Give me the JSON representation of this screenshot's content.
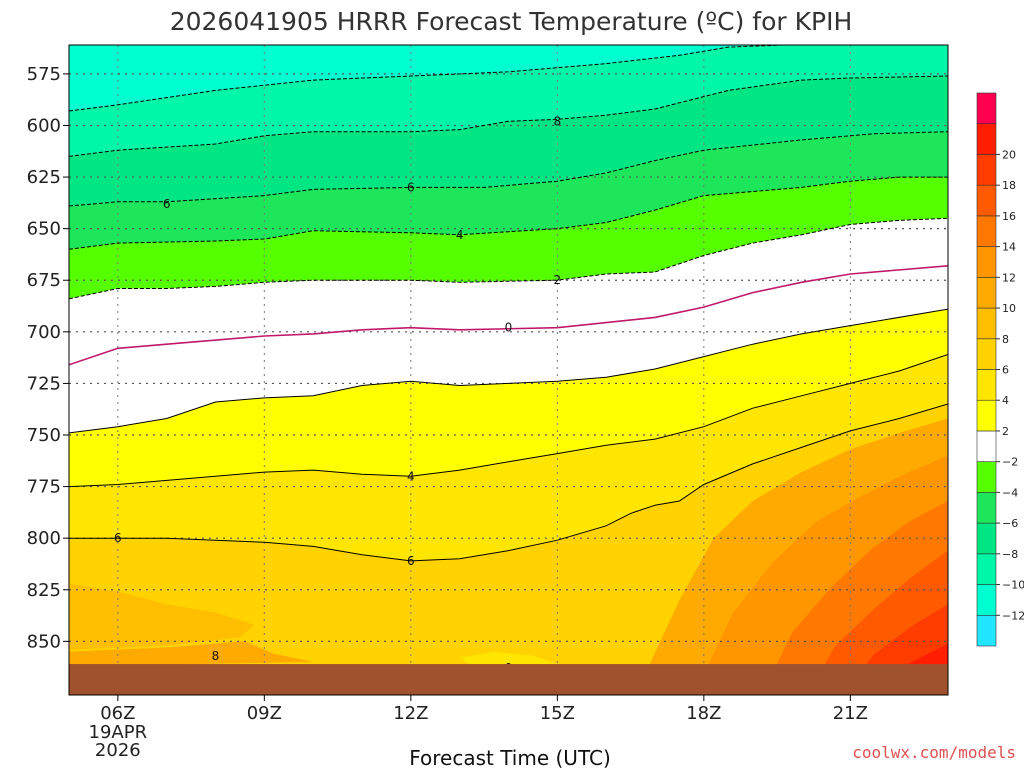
{
  "chart_data": {
    "type": "heatmap",
    "title": "2026041905 HRRR Forecast Temperature (ºC) for KPIH",
    "xlabel": "Forecast Time (UTC)",
    "ylabel": "",
    "credit": "coolwx.com/models",
    "x_ticks": [
      {
        "hour": 6,
        "label": "06Z",
        "sub": [
          "19APR",
          "2026"
        ]
      },
      {
        "hour": 9,
        "label": "09Z"
      },
      {
        "hour": 12,
        "label": "12Z"
      },
      {
        "hour": 15,
        "label": "15Z"
      },
      {
        "hour": 18,
        "label": "18Z"
      },
      {
        "hour": 21,
        "label": "21Z"
      }
    ],
    "xlim": [
      5,
      23
    ],
    "y_ticks": [
      {
        "p": 575,
        "label": "575"
      },
      {
        "p": 600,
        "label": "600"
      },
      {
        "p": 625,
        "label": "625"
      },
      {
        "p": 650,
        "label": "650"
      },
      {
        "p": 675,
        "label": "675"
      },
      {
        "p": 700,
        "label": "700"
      },
      {
        "p": 725,
        "label": "725"
      },
      {
        "p": 750,
        "label": "750"
      },
      {
        "p": 775,
        "label": "775"
      },
      {
        "p": 800,
        "label": "800"
      },
      {
        "p": 825,
        "label": "825"
      },
      {
        "p": 850,
        "label": "850"
      }
    ],
    "ylim": [
      561,
      876
    ],
    "ground_pressure": 861,
    "colorbar": {
      "colors": [
        "#22e6ff",
        "#00ffd0",
        "#00f7a8",
        "#00e682",
        "#1ee65a",
        "#55ff00",
        "#ffffff",
        "#ffff00",
        "#ffe600",
        "#ffd200",
        "#ffbe00",
        "#ffaa00",
        "#ff9600",
        "#ff7800",
        "#ff5a00",
        "#ff3c00",
        "#ff1e00",
        "#ff0050"
      ],
      "tick_labels": [
        "−12",
        "−10",
        "−8",
        "−6",
        "−4",
        "−2",
        "2",
        "4",
        "6",
        "8",
        "10",
        "12",
        "14",
        "16",
        "18",
        "20"
      ]
    },
    "contours": [
      {
        "temp": -8,
        "pts": [
          [
            5,
            593
          ],
          [
            6,
            590
          ],
          [
            8,
            583
          ],
          [
            10,
            578
          ],
          [
            12,
            576
          ],
          [
            14,
            574
          ],
          [
            15,
            572
          ],
          [
            16,
            570
          ],
          [
            17.5,
            566
          ],
          [
            18.5,
            562
          ],
          [
            23,
            558
          ]
        ]
      },
      {
        "temp": -8,
        "pts": [
          [
            5,
            615
          ],
          [
            6,
            612
          ],
          [
            8,
            609
          ],
          [
            9,
            605
          ],
          [
            10,
            603
          ],
          [
            12,
            603
          ],
          [
            13,
            602
          ],
          [
            14,
            598
          ],
          [
            15,
            597
          ],
          [
            16,
            595
          ],
          [
            17,
            592
          ],
          [
            18.5,
            583
          ],
          [
            20,
            578
          ],
          [
            21,
            577
          ],
          [
            23,
            576
          ]
        ]
      },
      {
        "temp": -6,
        "pts": [
          [
            5,
            639
          ],
          [
            6,
            637
          ],
          [
            7,
            637
          ],
          [
            9,
            634
          ],
          [
            10,
            631
          ],
          [
            12,
            630
          ],
          [
            13.5,
            630
          ],
          [
            15,
            627
          ],
          [
            16,
            623
          ],
          [
            17,
            617
          ],
          [
            18,
            612
          ],
          [
            20,
            607
          ],
          [
            21.5,
            604
          ],
          [
            23,
            603
          ]
        ]
      },
      {
        "temp": -4,
        "pts": [
          [
            5,
            660
          ],
          [
            6,
            657
          ],
          [
            8,
            656
          ],
          [
            9,
            655
          ],
          [
            10,
            651
          ],
          [
            12,
            652
          ],
          [
            13,
            653
          ],
          [
            15,
            650
          ],
          [
            16,
            647
          ],
          [
            17,
            641
          ],
          [
            18,
            634
          ],
          [
            20,
            630
          ],
          [
            21,
            627
          ],
          [
            22,
            625
          ],
          [
            23,
            625
          ]
        ]
      },
      {
        "temp": -2,
        "pts": [
          [
            5,
            684
          ],
          [
            6,
            679
          ],
          [
            7,
            679
          ],
          [
            8,
            678
          ],
          [
            9,
            676
          ],
          [
            10,
            675
          ],
          [
            11,
            675
          ],
          [
            12,
            675
          ],
          [
            13,
            676
          ],
          [
            15,
            675
          ],
          [
            16,
            672
          ],
          [
            17,
            671
          ],
          [
            18,
            663
          ],
          [
            19,
            657
          ],
          [
            20,
            653
          ],
          [
            21,
            648
          ],
          [
            22,
            646
          ],
          [
            23,
            645
          ]
        ]
      },
      {
        "temp": 0,
        "pts": [
          [
            5,
            716
          ],
          [
            6,
            708
          ],
          [
            7,
            706
          ],
          [
            9,
            702
          ],
          [
            10,
            701
          ],
          [
            11,
            699
          ],
          [
            12,
            698
          ],
          [
            13,
            699
          ],
          [
            15,
            698
          ],
          [
            17,
            693
          ],
          [
            18,
            688
          ],
          [
            19,
            681
          ],
          [
            20,
            676
          ],
          [
            21,
            672
          ],
          [
            23,
            668
          ]
        ]
      },
      {
        "temp": 2,
        "pts": [
          [
            5,
            749
          ],
          [
            6,
            746
          ],
          [
            7,
            742
          ],
          [
            8,
            734
          ],
          [
            9,
            732
          ],
          [
            10,
            731
          ],
          [
            11,
            726
          ],
          [
            12,
            724
          ],
          [
            13,
            726
          ],
          [
            14,
            725
          ],
          [
            15,
            724
          ],
          [
            16,
            722
          ],
          [
            17,
            718
          ],
          [
            18,
            712
          ],
          [
            19,
            706
          ],
          [
            20,
            701
          ],
          [
            21,
            697
          ],
          [
            23,
            689
          ]
        ]
      },
      {
        "temp": 4,
        "pts": [
          [
            5,
            775
          ],
          [
            6,
            774
          ],
          [
            7,
            772
          ],
          [
            8,
            770
          ],
          [
            9,
            768
          ],
          [
            10,
            767
          ],
          [
            11,
            769
          ],
          [
            12,
            770
          ],
          [
            13,
            767
          ],
          [
            14,
            763
          ],
          [
            15,
            759
          ],
          [
            16,
            755
          ],
          [
            17,
            752
          ],
          [
            18,
            746
          ],
          [
            19,
            737
          ],
          [
            20,
            731
          ],
          [
            21,
            725
          ],
          [
            22,
            719
          ],
          [
            23,
            711
          ]
        ]
      },
      {
        "temp": 6,
        "pts": [
          [
            5,
            800
          ],
          [
            6,
            800
          ],
          [
            7,
            800
          ],
          [
            9,
            802
          ],
          [
            10,
            804
          ],
          [
            11,
            808
          ],
          [
            12,
            811
          ],
          [
            13,
            810
          ],
          [
            14,
            806
          ],
          [
            15,
            801
          ],
          [
            16,
            794
          ],
          [
            16.5,
            788
          ],
          [
            17,
            784
          ],
          [
            17.5,
            782
          ],
          [
            18,
            774
          ],
          [
            19,
            764
          ],
          [
            20,
            756
          ],
          [
            21,
            748
          ],
          [
            22,
            742
          ],
          [
            23,
            735
          ]
        ]
      }
    ]
  }
}
